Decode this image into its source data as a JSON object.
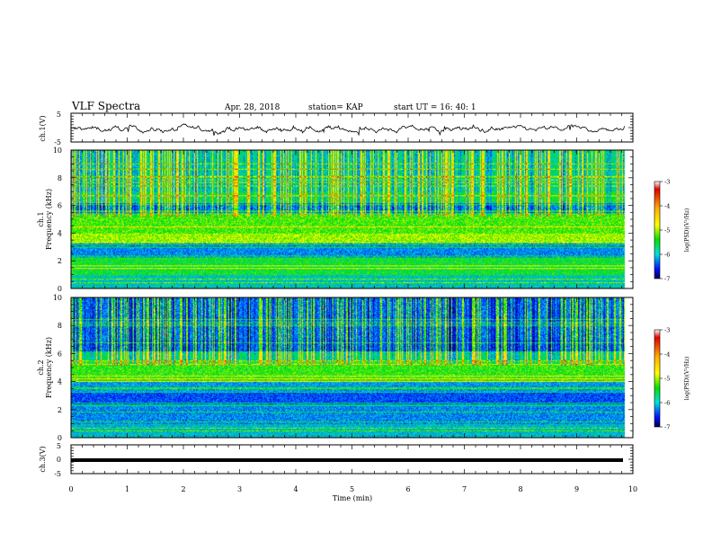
{
  "header": {
    "title": "VLF Spectra",
    "date": "Apr. 28, 2018",
    "station": "station= KAP",
    "start": "start  UT  =   16: 40: 1"
  },
  "chart_data": [
    {
      "type": "line",
      "panel": "ch1-waveform",
      "ylabel": "ch.1(V)",
      "ylim": [
        -5,
        5
      ],
      "yticks": [
        "5",
        "-5"
      ],
      "xlim": [
        0,
        10
      ],
      "series": [
        {
          "values": "noisy voltage trace, mostly between -2.5 and 2 V"
        }
      ],
      "color": "#000000"
    },
    {
      "type": "heatmap",
      "panel": "ch1-spectrogram",
      "ylabel": "ch.1\nFrequency (kHz)",
      "ylim": [
        0,
        10
      ],
      "yticks": [
        "0",
        "2",
        "4",
        "6",
        "8",
        "10"
      ],
      "xlim": [
        0,
        10
      ],
      "colorbar": {
        "label": "log(PSD)(V²/Hz)",
        "range": [
          -7,
          -3
        ],
        "ticks": [
          "-3",
          "-4",
          "-5",
          "-6",
          "-7"
        ]
      }
    },
    {
      "type": "heatmap",
      "panel": "ch2-spectrogram",
      "ylabel": "ch.2\nFrequency (kHz)",
      "ylim": [
        0,
        10
      ],
      "yticks": [
        "0",
        "2",
        "4",
        "6",
        "8",
        "10"
      ],
      "xlim": [
        0,
        10
      ],
      "colorbar": {
        "label": "log(PSD)(V²/Hz)",
        "range": [
          -7,
          -3
        ],
        "ticks": [
          "-3",
          "-4",
          "-5",
          "-6",
          "-7"
        ]
      }
    },
    {
      "type": "line",
      "panel": "ch3-waveform",
      "ylabel": "ch.3(V)",
      "ylim": [
        -5,
        5
      ],
      "yticks": [
        "5",
        "0",
        "-5"
      ],
      "xlim": [
        0,
        10
      ],
      "series": [
        {
          "values": "flat trace near -1.5 V"
        }
      ],
      "color": "#000000"
    }
  ],
  "xaxis": {
    "label": "Time  (min)",
    "ticks": [
      "0",
      "1",
      "2",
      "3",
      "4",
      "5",
      "6",
      "7",
      "8",
      "9",
      "10"
    ]
  }
}
